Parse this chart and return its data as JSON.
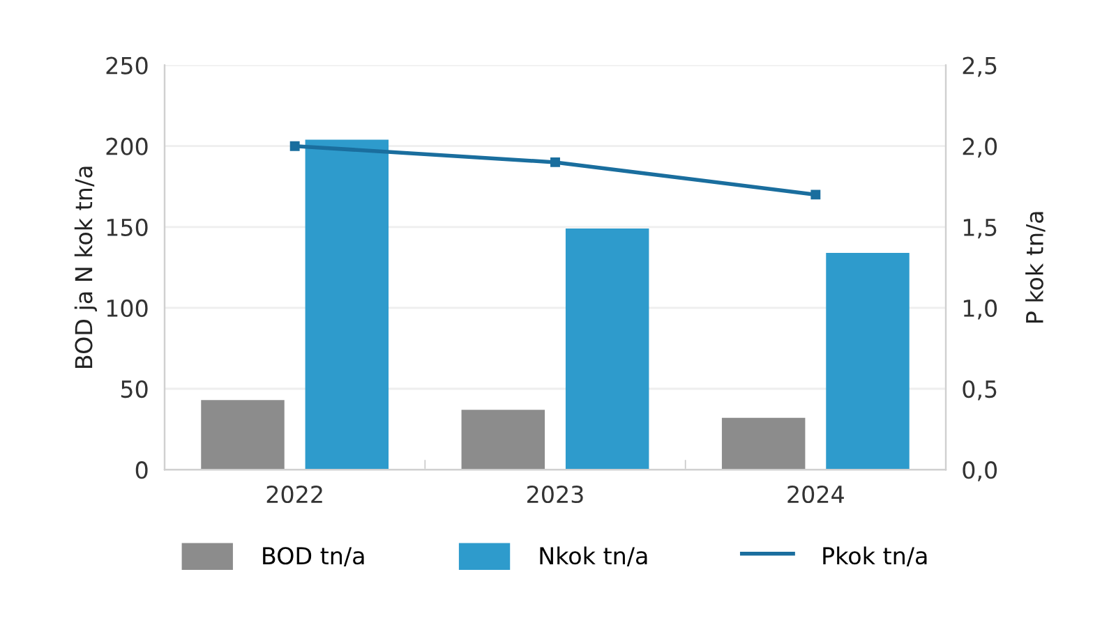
{
  "chart_data": {
    "type": "bar",
    "categories": [
      "2022",
      "2023",
      "2024"
    ],
    "series": [
      {
        "name": "BOD tn/a",
        "color": "#8c8c8c",
        "values": [
          43,
          37,
          32
        ]
      },
      {
        "name": "Nkok tn/a",
        "color": "#2e9bcc",
        "values": [
          204,
          149,
          134
        ]
      },
      {
        "name": "Pkok tn/a",
        "type": "line",
        "axis": "y2",
        "color": "#1a6e9e",
        "marker": "square",
        "values": [
          2.0,
          1.9,
          1.7
        ]
      }
    ],
    "ylabel": "BOD ja N kok tn/a",
    "y2label": "P kok tn/a",
    "ylim": [
      0,
      250
    ],
    "yticks": [
      0,
      50,
      100,
      150,
      200,
      250
    ],
    "y2lim": [
      0,
      2.5
    ],
    "y2ticks": [
      {
        "value": 0,
        "label": "0,0"
      },
      {
        "value": 0.5,
        "label": "0,5"
      },
      {
        "value": 1.0,
        "label": "1,0"
      },
      {
        "value": 1.5,
        "label": "1,5"
      },
      {
        "value": 2.0,
        "label": "2,0"
      },
      {
        "value": 2.5,
        "label": "2,5"
      }
    ],
    "grid": "y",
    "legend": "bottom"
  }
}
